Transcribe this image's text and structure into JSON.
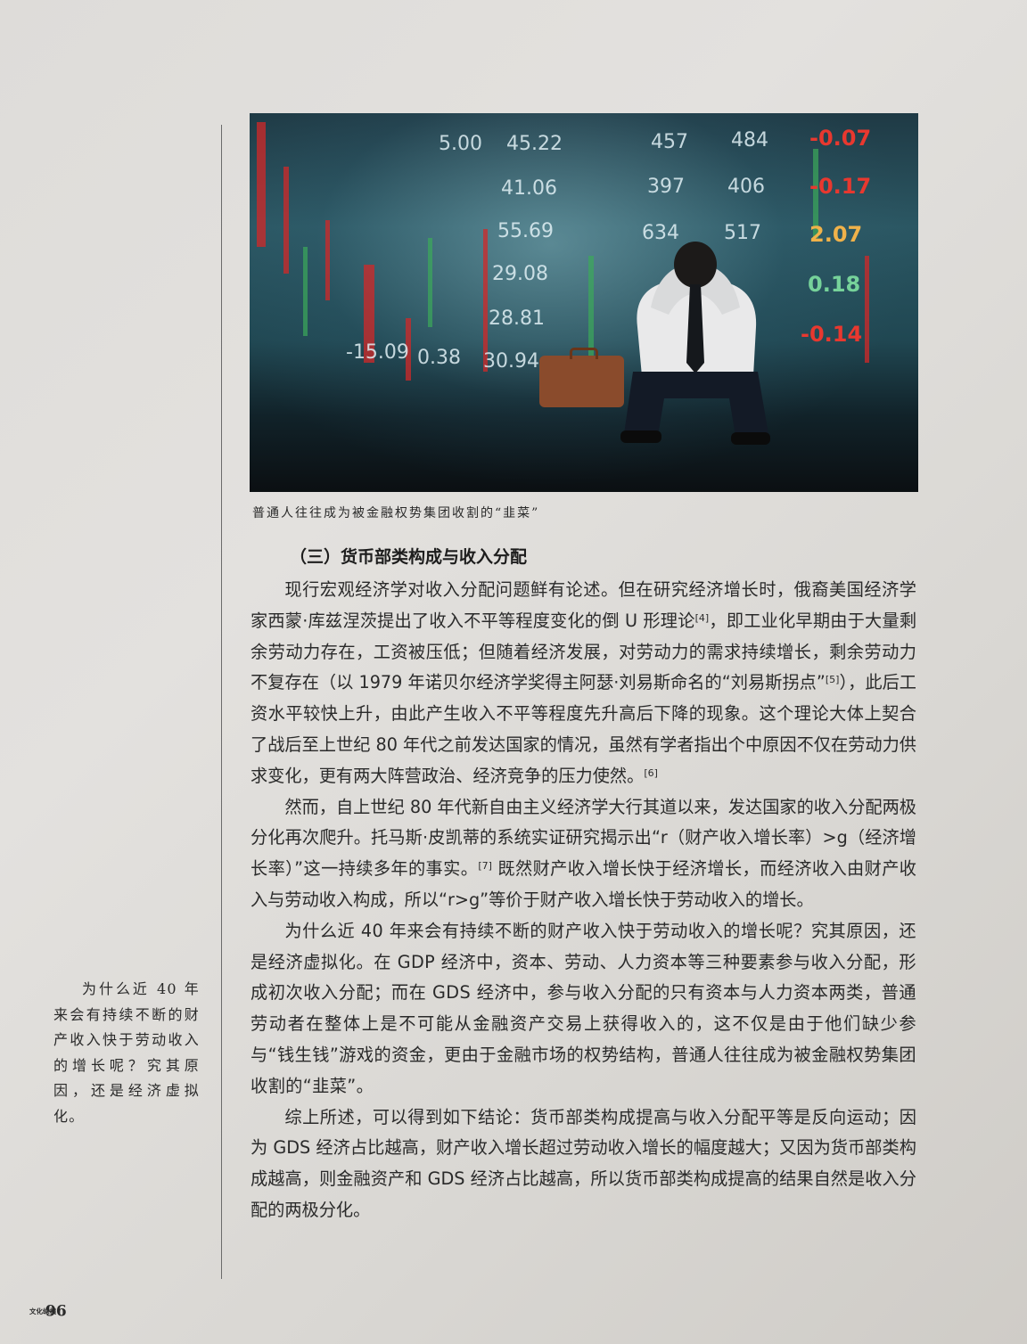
{
  "figure": {
    "ticker_numbers": [
      {
        "text": "5.00",
        "tone": "white"
      },
      {
        "text": "45.22",
        "tone": "white"
      },
      {
        "text": "457",
        "tone": "white"
      },
      {
        "text": "484",
        "tone": "white"
      },
      {
        "text": "-0.07",
        "tone": "red"
      },
      {
        "text": "41.06",
        "tone": "white"
      },
      {
        "text": "397",
        "tone": "white"
      },
      {
        "text": "406",
        "tone": "white"
      },
      {
        "text": "-0.17",
        "tone": "red"
      },
      {
        "text": "55.69",
        "tone": "white"
      },
      {
        "text": "634",
        "tone": "white"
      },
      {
        "text": "517",
        "tone": "white"
      },
      {
        "text": "2.07",
        "tone": "yellow"
      },
      {
        "text": "29.08",
        "tone": "white"
      },
      {
        "text": "0.18",
        "tone": "green"
      },
      {
        "text": "28.81",
        "tone": "white"
      },
      {
        "text": "-0.14",
        "tone": "red"
      },
      {
        "text": "-15.09",
        "tone": "white"
      },
      {
        "text": "0.38",
        "tone": "white"
      },
      {
        "text": "30.94",
        "tone": "white"
      }
    ],
    "caption": "普通人往往成为被金融权势集团收割的“韭菜”"
  },
  "section": {
    "heading": "（三）货币部类构成与收入分配"
  },
  "paragraphs": [
    {
      "segments": [
        {
          "text": "现行宏观经济学对收入分配问题鲜有论述。但在研究经济增长时，俄裔美国经济学家西蒙·库兹涅茨提出了收入不平等程度变化的倒 U 形理论"
        },
        {
          "text": "[4]",
          "sup": true
        },
        {
          "text": "，即工业化早期由于大量剩余劳动力存在，工资被压低；但随着经济发展，对劳动力的需求持续增长，剩余劳动力不复存在（以 1979 年诺贝尔经济学奖得主阿瑟·刘易斯命名的“刘易斯拐点”"
        },
        {
          "text": "[5]",
          "sup": true
        },
        {
          "text": "），此后工资水平较快上升，由此产生收入不平等程度先升高后下降的现象。这个理论大体上契合了战后至上世纪 80 年代之前发达国家的情况，虽然有学者指出个中原因不仅在劳动力供求变化，更有两大阵营政治、经济竞争的压力使然。"
        },
        {
          "text": "[6]",
          "sup": true
        }
      ]
    },
    {
      "segments": [
        {
          "text": "然而，自上世纪 80 年代新自由主义经济学大行其道以来，发达国家的收入分配两极分化再次爬升。托马斯·皮凯蒂的系统实证研究揭示出“r（财产收入增长率）>g（经济增长率）”这一持续多年的事实。"
        },
        {
          "text": "[7]",
          "sup": true
        },
        {
          "text": " 既然财产收入增长快于经济增长，而经济收入由财产收入与劳动收入构成，所以“r>g”等价于财产收入增长快于劳动收入的增长。"
        }
      ]
    },
    {
      "segments": [
        {
          "text": "为什么近 40 年来会有持续不断的财产收入快于劳动收入的增长呢？究其原因，还是经济虚拟化。在 GDP 经济中，资本、劳动、人力资本等三种要素参与收入分配，形成初次收入分配；而在 GDS 经济中，参与收入分配的只有资本与人力资本两类，普通劳动者在整体上是不可能从金融资产交易上获得收入的，这不仅是由于他们缺少参与“钱生钱”游戏的资金，更由于金融市场的权势结构，普通人往往成为被金融权势集团收割的“韭菜”。"
        }
      ]
    },
    {
      "segments": [
        {
          "text": "综上所述，可以得到如下结论：货币部类构成提高与收入分配平等是反向运动；因为 GDS 经济占比越高，财产收入增长超过劳动收入增长的幅度越大；又因为货币部类构成越高，则金融资产和 GDS 经济占比越高，所以货币部类构成提高的结果自然是收入分配的两极分化。"
        }
      ]
    }
  ],
  "pull_quote": "为什么近 40 年来会有持续不断的财产收入快于劳动收入的增长呢？究其原因，还是经济虚拟化。",
  "footer": {
    "logo_text": "文化纵横",
    "page_number": "96"
  }
}
